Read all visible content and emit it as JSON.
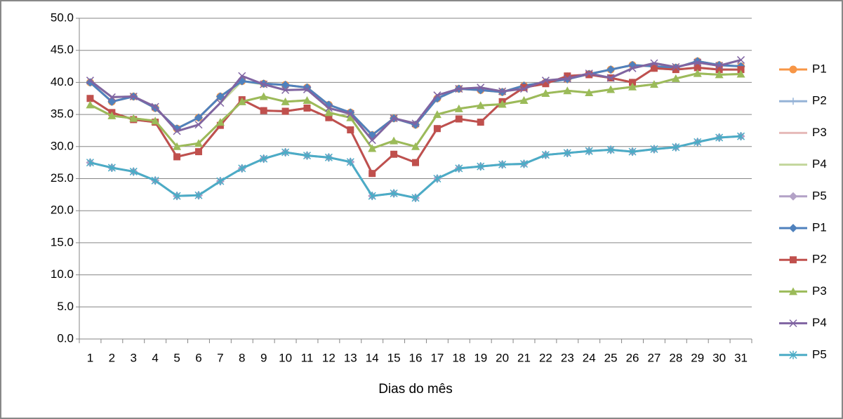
{
  "chart_data": {
    "type": "line",
    "x_label": "Dias do mês",
    "categories": [
      "1",
      "2",
      "3",
      "4",
      "5",
      "6",
      "7",
      "8",
      "9",
      "10",
      "11",
      "12",
      "13",
      "14",
      "15",
      "16",
      "17",
      "18",
      "19",
      "20",
      "21",
      "22",
      "23",
      "24",
      "25",
      "26",
      "27",
      "28",
      "29",
      "30",
      "31"
    ],
    "ylim": [
      0,
      50
    ],
    "yticks": [
      {
        "value": 0,
        "label": "0.0"
      },
      {
        "value": 5,
        "label": "5.0"
      },
      {
        "value": 10,
        "label": "10.0"
      },
      {
        "value": 15,
        "label": "15.0"
      },
      {
        "value": 20,
        "label": "20.0"
      },
      {
        "value": 25,
        "label": "25.0"
      },
      {
        "value": 30,
        "label": "30.0"
      },
      {
        "value": 35,
        "label": "35.0"
      },
      {
        "value": 40,
        "label": "40.0"
      },
      {
        "value": 45,
        "label": "45.0"
      },
      {
        "value": 50,
        "label": "50.0"
      }
    ],
    "grid": true,
    "legend": "right",
    "series": [
      {
        "name": "P1",
        "color": "#f79646",
        "marker": "circle",
        "values": [
          40.0,
          37.0,
          37.8,
          36.0,
          32.8,
          34.5,
          37.8,
          40.2,
          39.8,
          39.6,
          39.2,
          36.5,
          35.3,
          31.8,
          34.4,
          33.4,
          37.5,
          39.0,
          38.8,
          38.5,
          39.5,
          40.0,
          40.5,
          41.3,
          42.0,
          42.7,
          42.5,
          42.3,
          43.3,
          42.7,
          42.5
        ]
      },
      {
        "name": "P2",
        "color": "#95b3d7",
        "marker": "plus",
        "values": [
          37.5,
          35.3,
          34.2,
          33.8,
          28.4,
          29.2,
          33.3,
          37.3,
          35.6,
          35.5,
          36.0,
          34.5,
          32.6,
          25.8,
          28.8,
          27.5,
          32.8,
          34.3,
          33.8,
          37.0,
          39.2,
          39.8,
          41.0,
          41.2,
          40.7,
          40.0,
          42.2,
          42.0,
          42.3,
          42.0,
          42.0
        ]
      },
      {
        "name": "P3",
        "color": "#e6b9b8",
        "marker": "none",
        "values": [
          36.5,
          34.8,
          34.4,
          34.0,
          30.0,
          30.5,
          33.8,
          37.0,
          37.8,
          37.0,
          37.2,
          35.3,
          34.5,
          29.7,
          30.9,
          30.0,
          35.0,
          35.9,
          36.4,
          36.6,
          37.2,
          38.3,
          38.7,
          38.4,
          38.9,
          39.3,
          39.7,
          40.6,
          41.4,
          41.2,
          41.3
        ]
      },
      {
        "name": "P4",
        "color": "#c3d69b",
        "marker": "none",
        "values": [
          40.3,
          37.7,
          37.8,
          36.2,
          32.4,
          33.4,
          36.8,
          40.2,
          39.7,
          38.8,
          38.9,
          36.0,
          35.1,
          31.0,
          34.4,
          33.6,
          37.5,
          39.0,
          39.2,
          38.6,
          39.0,
          40.3,
          40.6,
          41.4,
          40.7,
          42.2,
          43.0,
          42.4,
          43.1,
          42.6,
          43.5
        ]
      },
      {
        "name": "P5",
        "color": "#b3a2c7",
        "marker": "diamond",
        "values": [
          27.5,
          26.7,
          26.1,
          24.7,
          22.3,
          22.4,
          24.6,
          26.6,
          28.1,
          29.1,
          28.6,
          28.3,
          27.6,
          22.3,
          22.7,
          22.0,
          25.0,
          26.6,
          26.9,
          27.2,
          27.3,
          28.7,
          29.0,
          29.3,
          29.5,
          29.2,
          29.6,
          29.9,
          30.7,
          31.4,
          31.6
        ]
      },
      {
        "name": "P1",
        "color": "#4f81bd",
        "marker": "diamond",
        "values": [
          40.0,
          37.0,
          37.8,
          36.0,
          32.8,
          34.5,
          37.8,
          40.2,
          39.8,
          39.6,
          39.2,
          36.5,
          35.3,
          31.8,
          34.4,
          33.4,
          37.5,
          39.0,
          38.8,
          38.5,
          39.5,
          40.0,
          40.5,
          41.3,
          42.0,
          42.7,
          42.5,
          42.3,
          43.3,
          42.7,
          42.5
        ]
      },
      {
        "name": "P2",
        "color": "#c0504d",
        "marker": "square",
        "values": [
          37.5,
          35.3,
          34.2,
          33.8,
          28.4,
          29.2,
          33.3,
          37.3,
          35.6,
          35.5,
          36.0,
          34.5,
          32.6,
          25.8,
          28.8,
          27.5,
          32.8,
          34.3,
          33.8,
          37.0,
          39.2,
          39.8,
          41.0,
          41.2,
          40.7,
          40.0,
          42.2,
          42.0,
          42.3,
          42.0,
          42.0
        ]
      },
      {
        "name": "P3",
        "color": "#9bbb59",
        "marker": "triangle",
        "values": [
          36.5,
          34.8,
          34.4,
          34.0,
          30.0,
          30.5,
          33.8,
          37.0,
          37.8,
          37.0,
          37.2,
          35.3,
          34.5,
          29.7,
          30.9,
          30.0,
          35.0,
          35.9,
          36.4,
          36.6,
          37.2,
          38.3,
          38.7,
          38.4,
          38.9,
          39.3,
          39.7,
          40.6,
          41.4,
          41.2,
          41.3
        ]
      },
      {
        "name": "P4",
        "color": "#8064a2",
        "marker": "x",
        "values": [
          40.3,
          37.7,
          37.8,
          36.2,
          32.4,
          33.4,
          36.8,
          41.0,
          39.7,
          38.8,
          38.9,
          36.0,
          35.1,
          31.0,
          34.4,
          33.6,
          38.0,
          39.0,
          39.2,
          38.6,
          39.0,
          40.3,
          40.6,
          41.4,
          40.7,
          42.2,
          43.0,
          42.4,
          43.1,
          42.6,
          43.5
        ]
      },
      {
        "name": "P5",
        "color": "#4bacc6",
        "marker": "asterisk",
        "values": [
          27.5,
          26.7,
          26.1,
          24.7,
          22.3,
          22.4,
          24.6,
          26.6,
          28.1,
          29.1,
          28.6,
          28.3,
          27.6,
          22.3,
          22.7,
          22.0,
          25.0,
          26.6,
          26.9,
          27.2,
          27.3,
          28.7,
          29.0,
          29.3,
          29.5,
          29.2,
          29.6,
          29.9,
          30.7,
          31.4,
          31.6
        ]
      }
    ]
  }
}
